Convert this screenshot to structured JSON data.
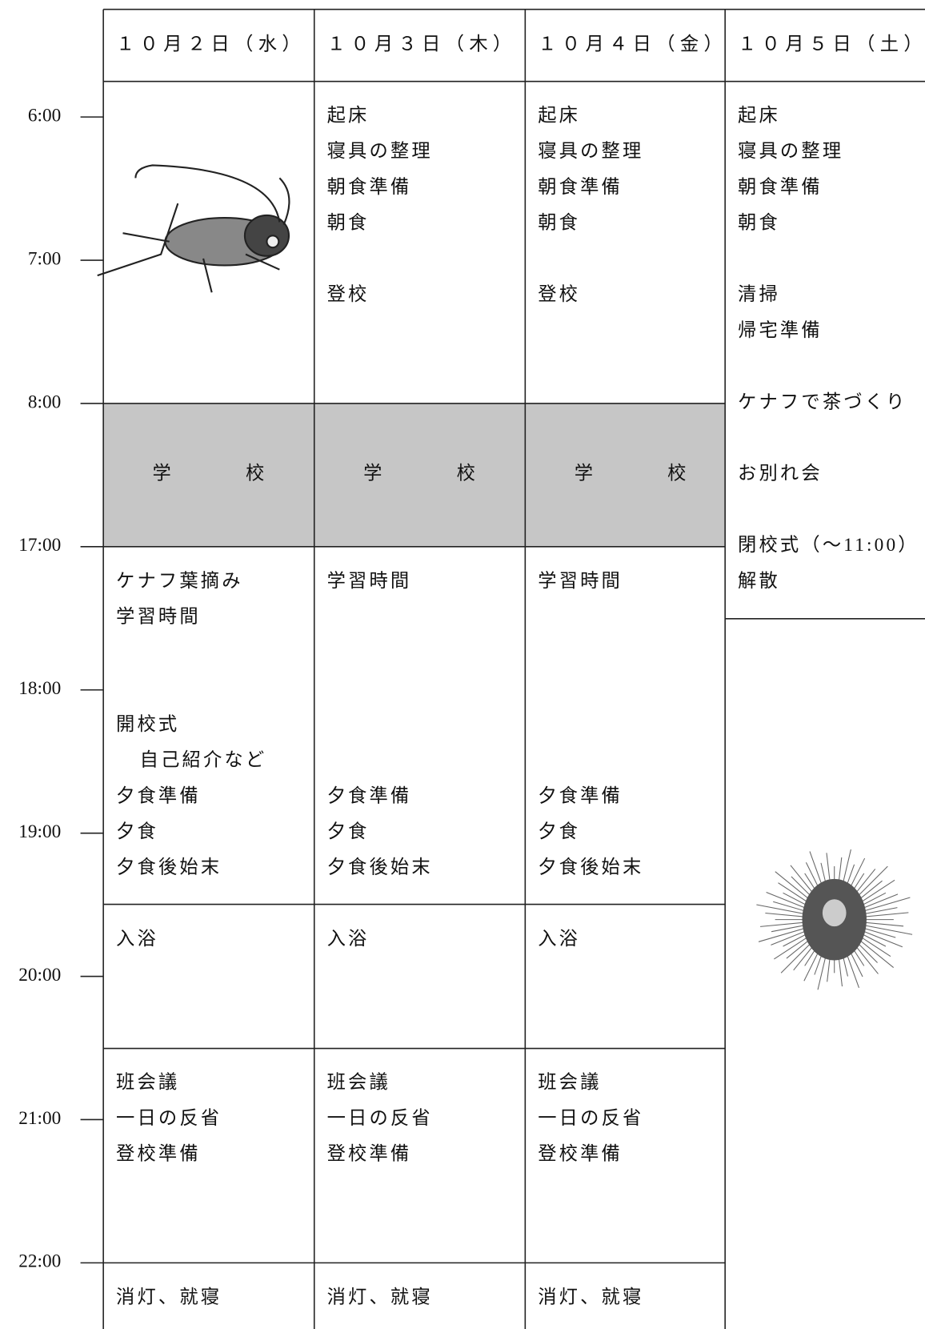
{
  "times": [
    "6:00",
    "7:00",
    "8:00",
    "17:00",
    "18:00",
    "19:00",
    "20:00",
    "21:00",
    "22:00"
  ],
  "days": [
    {
      "date": "１０月２日（水）",
      "school": [
        "学",
        "校"
      ],
      "evening": [
        "ケナフ葉摘み",
        "学習時間",
        "開校式",
        "自己紹介など",
        "夕食準備",
        "夕食",
        "夕食後始末"
      ],
      "bath": [
        "入浴"
      ],
      "meeting": [
        "班会議",
        "一日の反省",
        "登校準備"
      ],
      "night": [
        "消灯、就寝"
      ]
    },
    {
      "date": "１０月３日（木）",
      "morning": [
        "起床",
        "寝具の整理",
        "朝食準備",
        "朝食",
        "登校"
      ],
      "school": [
        "学",
        "校"
      ],
      "evening": [
        "学習時間",
        "夕食準備",
        "夕食",
        "夕食後始末"
      ],
      "bath": [
        "入浴"
      ],
      "meeting": [
        "班会議",
        "一日の反省",
        "登校準備"
      ],
      "night": [
        "消灯、就寝"
      ]
    },
    {
      "date": "１０月４日（金）",
      "morning": [
        "起床",
        "寝具の整理",
        "朝食準備",
        "朝食",
        "登校"
      ],
      "school": [
        "学",
        "校"
      ],
      "evening": [
        "学習時間",
        "夕食準備",
        "夕食",
        "夕食後始末"
      ],
      "bath": [
        "入浴"
      ],
      "meeting": [
        "班会議",
        "一日の反省",
        "登校準備"
      ],
      "night": [
        "消灯、就寝"
      ]
    },
    {
      "date": "１０月５日（土）",
      "morning": [
        "起床",
        "寝具の整理",
        "朝食準備",
        "朝食",
        "清掃",
        "帰宅準備",
        "ケナフで茶づくり",
        "お別れ会",
        "閉校式（～11:00）",
        "解散"
      ]
    }
  ]
}
